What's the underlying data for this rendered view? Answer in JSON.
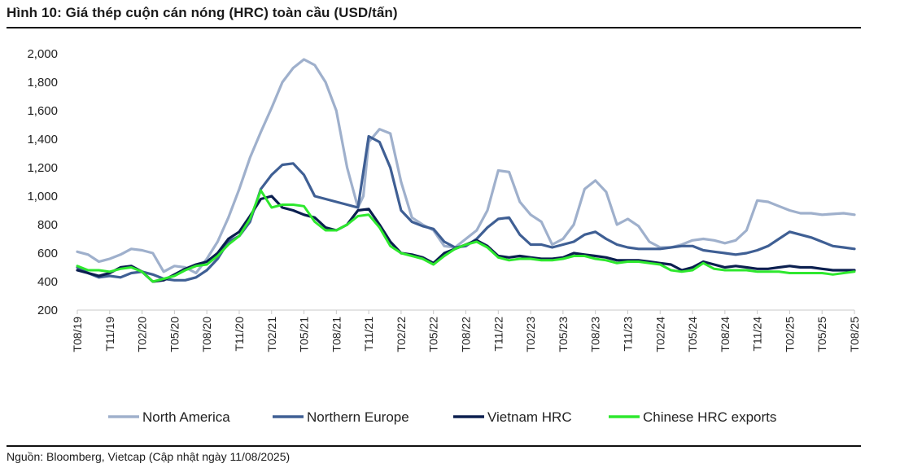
{
  "header": {
    "title": "Hình 10: Giá thép cuộn cán nóng (HRC) toàn cầu (USD/tấn)"
  },
  "footer": {
    "source": "Nguồn: Bloomberg, Vietcap (Cập nhật ngày 11/08/2025)"
  },
  "chart_data": {
    "type": "line",
    "title": "Hình 10: Giá thép cuộn cán nóng (HRC) toàn cầu (USD/tấn)",
    "xlabel": "",
    "ylabel": "",
    "ylim": [
      200,
      2000
    ],
    "yticks": [
      200,
      400,
      600,
      800,
      1000,
      1200,
      1400,
      1600,
      1800,
      2000
    ],
    "ytick_labels": [
      "200",
      "400",
      "600",
      "800",
      "1,000",
      "1,200",
      "1,400",
      "1,600",
      "1,800",
      "2,000"
    ],
    "x_range_months": [
      0,
      72
    ],
    "x_tick_labels": [
      "T08/19",
      "T11/19",
      "T02/20",
      "T05/20",
      "T08/20",
      "T11/20",
      "T02/21",
      "T05/21",
      "T08/21",
      "T11/21",
      "T02/22",
      "T05/22",
      "T08/22",
      "T11/22",
      "T02/23",
      "T05/23",
      "T08/23",
      "T11/23",
      "T02/24",
      "T05/24",
      "T08/24",
      "T11/24",
      "T02/25",
      "T05/25",
      "T08/25"
    ],
    "legend_position": "bottom",
    "series": [
      {
        "name": "North America",
        "color": "#9fb0cc",
        "x": [
          0,
          1,
          2,
          3,
          4,
          5,
          6,
          7,
          8,
          9,
          10,
          11,
          12,
          13,
          14,
          15,
          16,
          17,
          18,
          19,
          20,
          21,
          22,
          23,
          24,
          25,
          26,
          26.5,
          27,
          28,
          29,
          30,
          31,
          32,
          33,
          34,
          35,
          36,
          37,
          38,
          39,
          40,
          41,
          42,
          43,
          44,
          45,
          46,
          47,
          48,
          49,
          50,
          51,
          52,
          53,
          54,
          55,
          56,
          57,
          58,
          59,
          60,
          61,
          62,
          63,
          64,
          65,
          66,
          67,
          68,
          69,
          70,
          71,
          72
        ],
        "values": [
          610,
          590,
          540,
          560,
          590,
          630,
          620,
          600,
          470,
          510,
          500,
          460,
          560,
          680,
          850,
          1050,
          1270,
          1450,
          1620,
          1800,
          1900,
          1960,
          1920,
          1800,
          1600,
          1200,
          920,
          1000,
          1380,
          1470,
          1440,
          1100,
          850,
          800,
          760,
          650,
          640,
          700,
          760,
          900,
          1180,
          1170,
          960,
          870,
          820,
          660,
          700,
          800,
          1050,
          1110,
          1030,
          800,
          840,
          790,
          680,
          640,
          640,
          660,
          690,
          700,
          690,
          670,
          690,
          760,
          970,
          960,
          930,
          900,
          880,
          880,
          870,
          875,
          880,
          870
        ]
      },
      {
        "name": "Northern Europe",
        "color": "#3f5f94",
        "x": [
          0,
          1,
          2,
          3,
          4,
          5,
          6,
          7,
          8,
          9,
          10,
          11,
          12,
          13,
          14,
          15,
          16,
          17,
          18,
          19,
          20,
          21,
          22,
          23,
          24,
          25,
          26,
          27,
          28,
          29,
          30,
          31,
          32,
          33,
          34,
          35,
          36,
          37,
          38,
          39,
          40,
          41,
          42,
          43,
          44,
          45,
          46,
          47,
          48,
          49,
          50,
          51,
          52,
          53,
          54,
          55,
          56,
          57,
          58,
          59,
          60,
          61,
          62,
          63,
          64,
          65,
          66,
          67,
          68,
          69,
          70,
          71,
          72
        ],
        "values": [
          500,
          460,
          430,
          440,
          430,
          460,
          470,
          450,
          420,
          410,
          410,
          430,
          480,
          560,
          680,
          720,
          820,
          1050,
          1150,
          1220,
          1230,
          1150,
          1000,
          980,
          960,
          940,
          920,
          1420,
          1380,
          1200,
          900,
          820,
          790,
          770,
          680,
          640,
          650,
          700,
          780,
          840,
          850,
          730,
          660,
          660,
          640,
          660,
          680,
          730,
          750,
          700,
          660,
          640,
          630,
          630,
          630,
          640,
          650,
          650,
          620,
          610,
          600,
          590,
          600,
          620,
          650,
          700,
          750,
          730,
          710,
          680,
          650,
          640,
          630
        ]
      },
      {
        "name": "Vietnam HRC",
        "color": "#0b1f4f",
        "x": [
          0,
          1,
          2,
          3,
          4,
          5,
          6,
          7,
          8,
          9,
          10,
          11,
          12,
          13,
          14,
          15,
          16,
          17,
          18,
          19,
          20,
          21,
          22,
          23,
          24,
          25,
          26,
          27,
          28,
          29,
          30,
          31,
          32,
          33,
          34,
          35,
          36,
          37,
          38,
          39,
          40,
          41,
          42,
          43,
          44,
          45,
          46,
          47,
          48,
          49,
          50,
          51,
          52,
          53,
          54,
          55,
          56,
          57,
          58,
          59,
          60,
          61,
          62,
          63,
          64,
          65,
          66,
          67,
          68,
          69,
          70,
          71,
          72
        ],
        "values": [
          480,
          460,
          440,
          460,
          500,
          510,
          470,
          400,
          410,
          450,
          490,
          520,
          540,
          600,
          700,
          750,
          860,
          980,
          1000,
          920,
          900,
          870,
          850,
          780,
          760,
          800,
          900,
          910,
          800,
          680,
          600,
          590,
          570,
          530,
          600,
          630,
          660,
          690,
          650,
          580,
          570,
          580,
          570,
          560,
          560,
          570,
          600,
          590,
          580,
          570,
          550,
          550,
          550,
          540,
          530,
          520,
          480,
          500,
          540,
          520,
          500,
          510,
          500,
          490,
          490,
          500,
          510,
          500,
          500,
          490,
          480,
          480,
          480
        ]
      },
      {
        "name": "Chinese HRC exports",
        "color": "#2ee82e",
        "x": [
          0,
          1,
          2,
          3,
          4,
          5,
          6,
          7,
          8,
          9,
          10,
          11,
          12,
          13,
          14,
          15,
          16,
          17,
          18,
          19,
          20,
          21,
          22,
          23,
          24,
          25,
          26,
          27,
          28,
          29,
          30,
          31,
          32,
          33,
          34,
          35,
          36,
          37,
          38,
          39,
          40,
          41,
          42,
          43,
          44,
          45,
          46,
          47,
          48,
          49,
          50,
          51,
          52,
          53,
          54,
          55,
          56,
          57,
          58,
          59,
          60,
          61,
          62,
          63,
          64,
          65,
          66,
          67,
          68,
          69,
          70,
          71,
          72
        ],
        "values": [
          510,
          480,
          480,
          470,
          490,
          500,
          470,
          400,
          420,
          440,
          480,
          510,
          520,
          580,
          660,
          720,
          840,
          1040,
          920,
          940,
          940,
          930,
          820,
          760,
          760,
          800,
          860,
          870,
          780,
          650,
          600,
          580,
          560,
          520,
          580,
          630,
          660,
          680,
          640,
          570,
          550,
          560,
          560,
          550,
          550,
          560,
          580,
          580,
          560,
          550,
          530,
          540,
          540,
          530,
          520,
          480,
          470,
          480,
          530,
          490,
          480,
          480,
          480,
          470,
          470,
          470,
          460,
          460,
          460,
          460,
          450,
          460,
          470
        ]
      }
    ]
  }
}
